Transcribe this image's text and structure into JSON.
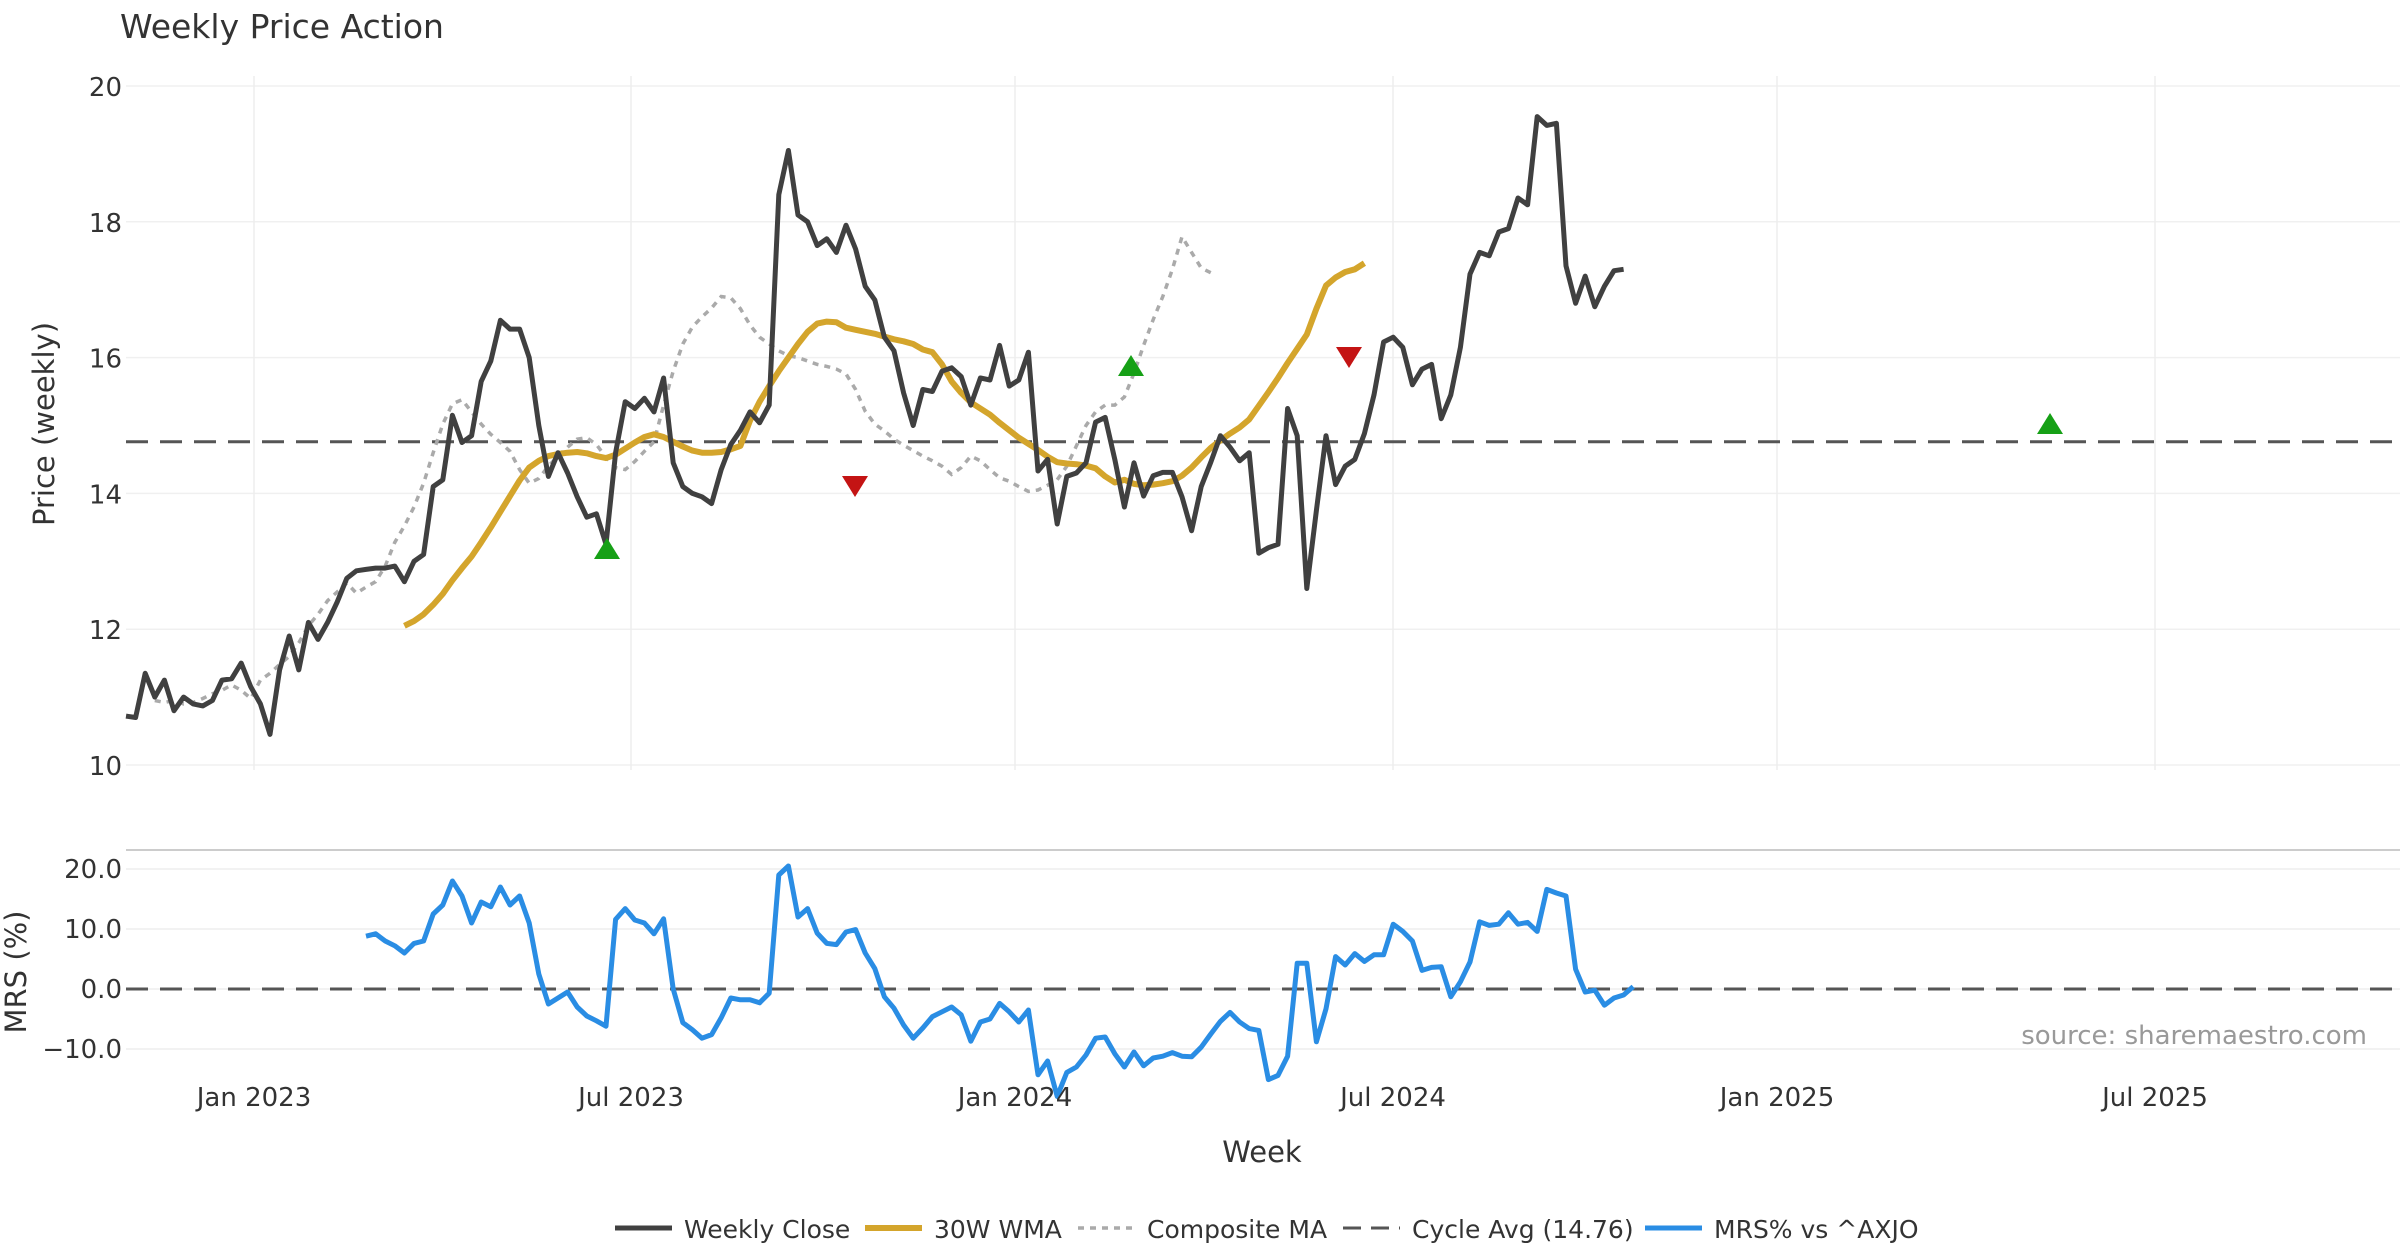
{
  "chart_data": {
    "type": "line",
    "title": "Weekly Price Action",
    "xlabel": "Week",
    "x_ticks": [
      "Jan 2023",
      "Jul 2023",
      "Jan 2024",
      "Jul 2024",
      "Jan 2025",
      "Jul 2025"
    ],
    "price_panel": {
      "ylabel": "Price (weekly)",
      "ylim": [
        10,
        20
      ],
      "y_ticks": [
        "10",
        "12",
        "14",
        "16",
        "18",
        "20"
      ],
      "grid": true,
      "cycle_avg": 14.76
    },
    "mrs_panel": {
      "ylabel": "MRS (%)",
      "ylim": [
        -15,
        21
      ],
      "y_ticks": [
        "−10.0",
        "0.0",
        "10.0",
        "20.0"
      ],
      "y_tick_values": [
        -10,
        0,
        10,
        20
      ],
      "zero_line": 0
    },
    "legend": {
      "weekly_close": "Weekly Close",
      "wma": "30W WMA",
      "composite": "Composite MA",
      "cycle": "Cycle Avg (14.76)",
      "mrs": "MRS% vs ^AXJO"
    },
    "source_note": "source: sharemaestro.com",
    "colors": {
      "close": "#404040",
      "wma": "#d4a52c",
      "composite": "#aaaaaa",
      "cycle": "#555555",
      "mrs": "#2a8de4",
      "buy": "#16a016",
      "sell": "#c41414"
    },
    "weekly_close": [
      10.72,
      10.7,
      11.35,
      11.0,
      11.25,
      10.8,
      11.0,
      10.9,
      10.87,
      10.95,
      11.25,
      11.27,
      11.5,
      11.15,
      10.9,
      10.45,
      11.4,
      11.9,
      11.4,
      12.1,
      11.85,
      12.1,
      12.4,
      12.75,
      12.86,
      12.88,
      12.9,
      12.9,
      12.93,
      12.7,
      13.0,
      13.1,
      14.1,
      14.2,
      15.15,
      14.75,
      14.85,
      15.65,
      15.95,
      16.55,
      16.42,
      16.42,
      16.0,
      15.0,
      14.25,
      14.6,
      14.3,
      13.95,
      13.65,
      13.7,
      13.25,
      14.6,
      15.35,
      15.25,
      15.4,
      15.2,
      15.7,
      14.45,
      14.1,
      14.0,
      13.95,
      13.85,
      14.35,
      14.72,
      14.93,
      15.2,
      15.04,
      15.3,
      18.4,
      19.05,
      18.1,
      18.0,
      17.65,
      17.75,
      17.55,
      17.95,
      17.6,
      17.05,
      16.85,
      16.3,
      16.1,
      15.48,
      15.0,
      15.53,
      15.5,
      15.8,
      15.85,
      15.72,
      15.3,
      15.7,
      15.67,
      16.18,
      15.58,
      15.67,
      16.08,
      14.33,
      14.5,
      13.55,
      14.25,
      14.3,
      14.45,
      15.05,
      15.12,
      14.5,
      13.8,
      14.45,
      13.96,
      14.26,
      14.31,
      14.31,
      13.95,
      13.45,
      14.1,
      14.46,
      14.85,
      14.68,
      14.48,
      14.6,
      13.12,
      13.2,
      13.25,
      15.25,
      14.85,
      12.6,
      13.75,
      14.85,
      14.13,
      14.4,
      14.5,
      14.88,
      15.45,
      16.23,
      16.3,
      16.15,
      15.6,
      15.83,
      15.9,
      15.1,
      15.45,
      16.15,
      17.23,
      17.55,
      17.5,
      17.85,
      17.9,
      18.35,
      18.25,
      19.55,
      19.42,
      19.45,
      17.35,
      16.8,
      17.2,
      16.75,
      17.05,
      17.28,
      17.3
    ],
    "wma": [
      12.05,
      12.12,
      12.22,
      12.36,
      12.52,
      12.72,
      12.9,
      13.07,
      13.28,
      13.5,
      13.73,
      13.96,
      14.19,
      14.38,
      14.48,
      14.55,
      14.58,
      14.6,
      14.61,
      14.59,
      14.55,
      14.52,
      14.57,
      14.66,
      14.75,
      14.83,
      14.87,
      14.83,
      14.76,
      14.69,
      14.63,
      14.6,
      14.6,
      14.61,
      14.65,
      14.7,
      15.07,
      15.35,
      15.58,
      15.8,
      16.0,
      16.2,
      16.38,
      16.5,
      16.53,
      16.52,
      16.44,
      16.41,
      16.38,
      16.35,
      16.31,
      16.27,
      16.24,
      16.2,
      16.12,
      16.08,
      15.9,
      15.65,
      15.48,
      15.34,
      15.25,
      15.16,
      15.04,
      14.93,
      14.82,
      14.73,
      14.64,
      14.54,
      14.46,
      14.44,
      14.43,
      14.41,
      14.37,
      14.25,
      14.16,
      14.2,
      14.14,
      14.12,
      14.13,
      14.15,
      14.18,
      14.26,
      14.38,
      14.53,
      14.67,
      14.78,
      14.88,
      14.97,
      15.09,
      15.29,
      15.49,
      15.7,
      15.92,
      16.13,
      16.34,
      16.72,
      17.06,
      17.18,
      17.26,
      17.3,
      17.39
    ],
    "composite": [
      10.95,
      10.92,
      10.95,
      10.9,
      10.92,
      10.98,
      11.05,
      11.1,
      11.18,
      11.1,
      10.98,
      11.25,
      11.35,
      11.48,
      11.6,
      11.8,
      12.05,
      12.22,
      12.42,
      12.55,
      12.68,
      12.53,
      12.62,
      12.7,
      12.93,
      13.28,
      13.52,
      13.8,
      14.15,
      14.6,
      15.02,
      15.32,
      15.38,
      15.2,
      15.02,
      14.87,
      14.75,
      14.62,
      14.35,
      14.15,
      14.22,
      14.4,
      14.55,
      14.68,
      14.8,
      14.82,
      14.72,
      14.53,
      14.38,
      14.35,
      14.47,
      14.62,
      14.76,
      15.3,
      15.8,
      16.2,
      16.45,
      16.6,
      16.73,
      16.9,
      16.88,
      16.72,
      16.48,
      16.3,
      16.2,
      16.1,
      16.03,
      16.0,
      15.95,
      15.9,
      15.87,
      15.83,
      15.76,
      15.53,
      15.21,
      15.02,
      14.92,
      14.8,
      14.71,
      14.63,
      14.55,
      14.48,
      14.4,
      14.28,
      14.38,
      14.55,
      14.48,
      14.35,
      14.23,
      14.18,
      14.1,
      14.03,
      14.05,
      14.12,
      14.2,
      14.4,
      14.7,
      15.0,
      15.2,
      15.3,
      15.3,
      15.42,
      15.77,
      16.18,
      16.56,
      16.9,
      17.3,
      17.78,
      17.55,
      17.32,
      17.25
    ],
    "mrs": [
      8.8,
      9.2,
      8.0,
      7.2,
      6.0,
      7.6,
      8.0,
      12.5,
      14.0,
      18.0,
      15.5,
      11.0,
      14.5,
      13.7,
      17.0,
      14.0,
      15.5,
      11.0,
      2.5,
      -2.5,
      -1.5,
      -0.5,
      -3.0,
      -4.5,
      -5.3,
      -6.2,
      11.6,
      13.4,
      11.5,
      11.0,
      9.2,
      11.7,
      0.0,
      -5.6,
      -6.8,
      -8.2,
      -7.6,
      -4.8,
      -1.5,
      -1.8,
      -1.8,
      -2.3,
      -0.7,
      19.0,
      20.5,
      12.0,
      13.4,
      9.3,
      7.6,
      7.4,
      9.5,
      9.9,
      6.0,
      3.4,
      -1.3,
      -3.2,
      -6.0,
      -8.2,
      -6.5,
      -4.6,
      -3.8,
      -3.0,
      -4.3,
      -8.7,
      -5.5,
      -5.0,
      -2.4,
      -3.8,
      -5.5,
      -3.5,
      -14.3,
      -12.0,
      -17.9,
      -13.9,
      -13.0,
      -11.0,
      -8.2,
      -8.0,
      -10.8,
      -13.0,
      -10.5,
      -12.8,
      -11.5,
      -11.2,
      -10.6,
      -11.2,
      -11.3,
      -9.7,
      -7.5,
      -5.4,
      -3.9,
      -5.5,
      -6.6,
      -6.9,
      -15.1,
      -14.4,
      -11.2,
      4.3,
      4.3,
      -8.8,
      -3.3,
      5.4,
      4.0,
      5.9,
      4.6,
      5.7,
      5.7,
      10.8,
      9.6,
      8.0,
      3.1,
      3.6,
      3.7,
      -1.3,
      1.2,
      4.5,
      11.2,
      10.6,
      10.8,
      12.7,
      10.8,
      11.1,
      9.6,
      16.6,
      16.0,
      15.5,
      3.3,
      -0.5,
      -0.2,
      -2.7,
      -1.5,
      -1.0,
      0.4
    ]
  }
}
